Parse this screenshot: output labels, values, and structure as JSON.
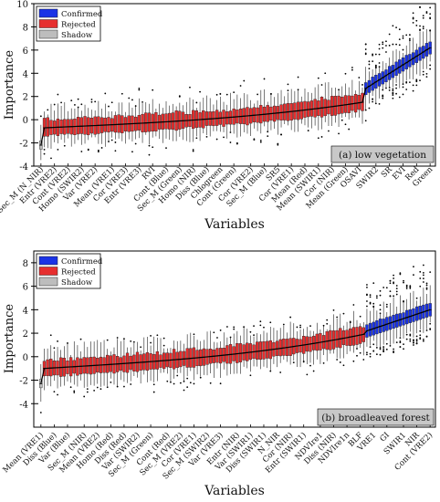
{
  "chart_data": [
    {
      "type": "box",
      "panel_label": "(a) low vegetation",
      "xlabel": "Variables",
      "ylabel": "Importance",
      "ylim": [
        -4,
        10
      ],
      "y_ticks": [
        -4,
        -2,
        0,
        2,
        4,
        6,
        8,
        10
      ],
      "legend": {
        "position": "top-left",
        "entries": [
          {
            "name": "Confirmed",
            "color": "#1a33e6"
          },
          {
            "name": "Rejected",
            "color": "#e62e2e"
          },
          {
            "name": "Shadow",
            "color": "#bdbdbd"
          }
        ]
      },
      "labeled_variables": [
        "Sec_M (N_NIR)",
        "Entr (VRE2)",
        "Cont (VRE2)",
        "Homo (SWIR2)",
        "Var (VRE2)",
        "Mean (VRE1)",
        "Cor (VRE3)",
        "Entr (VRE3)",
        "RVI",
        "Cont (Blue)",
        "Sec_M (Green)",
        "Homo (NIR)",
        "Diss (Blue)",
        "Chlogreen",
        "Cont (Green)",
        "Cor (VRE2)",
        "Sec_M (Blue)",
        "SR5",
        "Cor (VRE1)",
        "Mean (Red)",
        "Mean (SWIR1)",
        "Cor (NIR)",
        "Mean (Green)",
        "OSAVI",
        "SWIR2",
        "SR",
        "EVI",
        "Red",
        "Green"
      ],
      "n_variables": 116,
      "rejected_count": 95,
      "confirmed_count": 20,
      "shadow_count": 1,
      "median_profile": {
        "shadow": -2.2,
        "rejected_start": -0.7,
        "rejected_end": 1.5,
        "confirmed_start": 2.7,
        "confirmed_end": 6.2
      }
    },
    {
      "type": "box",
      "panel_label": "(b) broadleaved forest",
      "xlabel": "Variables",
      "ylabel": "Importance",
      "ylim": [
        -6,
        9
      ],
      "y_ticks": [
        -4,
        -2,
        0,
        2,
        4,
        6,
        8
      ],
      "legend": {
        "position": "top-left",
        "entries": [
          {
            "name": "Confirmed",
            "color": "#1a33e6"
          },
          {
            "name": "Rejected",
            "color": "#e62e2e"
          },
          {
            "name": "Shadow",
            "color": "#bdbdbd"
          }
        ]
      },
      "labeled_variables": [
        "Mean (VRE1)",
        "Diss (Blue)",
        "Var (Blue)",
        "Sec_M (NIR)",
        "Mean (VRE2)",
        "Homo (Red)",
        "Diss (Red)",
        "Var (SWIR2)",
        "Sec_M (Green)",
        "Cont (Red)",
        "Sec_M (VRE2)",
        "Cor (VRE1)",
        "Sec_M (SWIR2)",
        "Var (VRE3)",
        "Entr (NIR)",
        "Var (SWIR1)",
        "Diss (SWIR1)",
        "N_NIR",
        "Cor (NIR)",
        "Entr (SWIR1)",
        "NDVIre1",
        "Diss (NIR)",
        "NDVIre1n",
        "BLF",
        "VRE1",
        "GI",
        "SWIR1",
        "NIR",
        "Cont (VRE2)"
      ],
      "n_variables": 118,
      "rejected_count": 97,
      "confirmed_count": 20,
      "shadow_count": 1,
      "median_profile": {
        "shadow": -2.3,
        "rejected_start": -1.0,
        "rejected_end": 1.9,
        "confirmed_start": 2.2,
        "confirmed_end": 4.0
      }
    }
  ]
}
